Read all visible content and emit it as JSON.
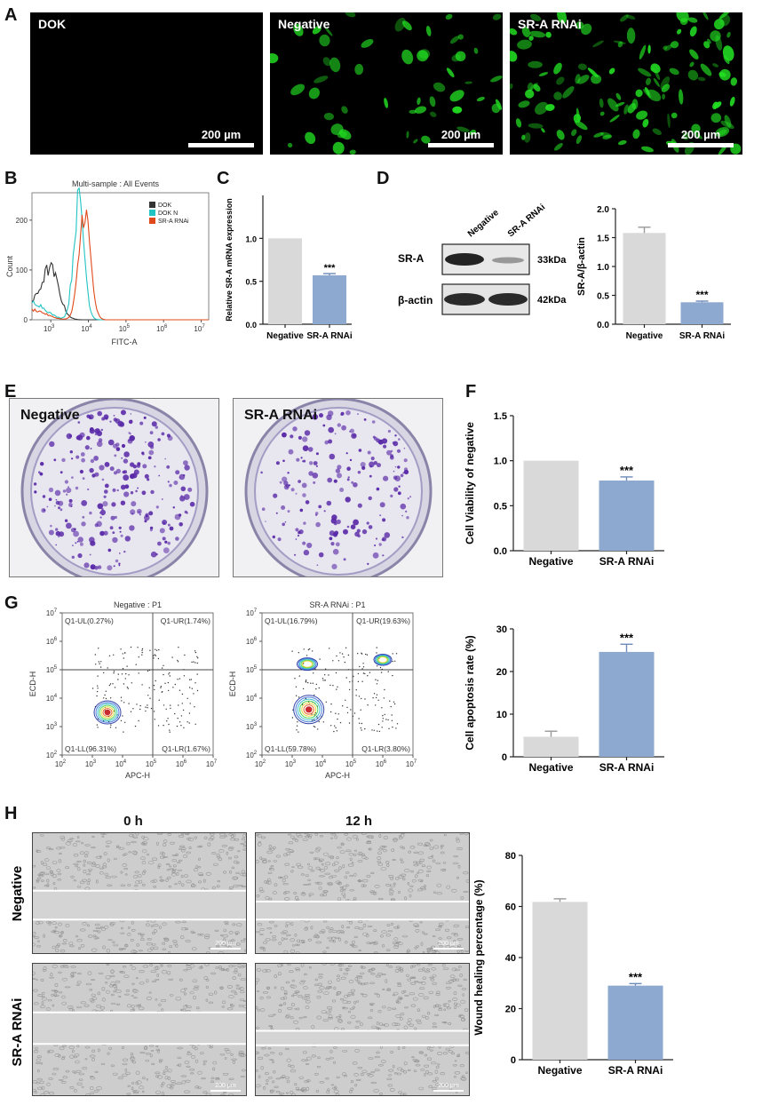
{
  "panels": {
    "A": {
      "label": "A",
      "images": [
        {
          "title": "DOK",
          "scalebar": "200 µm",
          "density": 0
        },
        {
          "title": "Negative",
          "scalebar": "200 µm",
          "density": 55
        },
        {
          "title": "SR-A RNAi",
          "scalebar": "200 µm",
          "density": 130
        }
      ],
      "fluorescence_color": "#22dd22"
    },
    "B": {
      "label": "B",
      "title": "Multi-sample : All Events",
      "xlabel": "FITC-A",
      "ylabel": "Count",
      "yticks": [
        "0",
        "100",
        "200"
      ],
      "xticks": [
        "3",
        "4",
        "5",
        "6",
        "7"
      ],
      "tick_base": "10",
      "legend": [
        {
          "name": "DOK",
          "color": "#333333"
        },
        {
          "name": "DOK N",
          "color": "#22c3c3"
        },
        {
          "name": "SR-A RNAi",
          "color": "#e0491c"
        }
      ]
    },
    "C": {
      "label": "C"
    },
    "D": {
      "label": "D",
      "blot": {
        "lanes": [
          "Negative",
          "SR-A RNAi"
        ],
        "rows": [
          {
            "name": "SR-A",
            "kda": "33kDa"
          },
          {
            "name": "β-actin",
            "kda": "42kDa"
          }
        ]
      }
    },
    "E": {
      "label": "E",
      "plates": [
        {
          "title": "Negative",
          "colonies": 260
        },
        {
          "title": "SR-A RNAi",
          "colonies": 190
        }
      ],
      "stain_color": "#5a2aa8"
    },
    "F": {
      "label": "F"
    },
    "G": {
      "label": "G",
      "plots": [
        {
          "title": "Negative : P1",
          "quadrants": {
            "ul": "Q1-UL(0.27%)",
            "ur": "Q1-UR(1.74%)",
            "ll": "Q1-LL(96.31%)",
            "lr": "Q1-LR(1.67%)"
          }
        },
        {
          "title": "SR-A RNAi : P1",
          "quadrants": {
            "ul": "Q1-UL(16.79%)",
            "ur": "Q1-UR(19.63%)",
            "ll": "Q1-LL(59.78%)",
            "lr": "Q1-LR(3.80%)"
          }
        }
      ],
      "xlabel": "APC-H",
      "ylabel": "ECD-H",
      "ticks": [
        "2",
        "3",
        "4",
        "5",
        "6",
        "7"
      ],
      "tick_base": "10"
    },
    "H": {
      "label": "H",
      "col_headers": [
        "0 h",
        "12 h"
      ],
      "row_headers": [
        "Negative",
        "SR-A RNAi"
      ],
      "scalebar": "200 µm"
    }
  },
  "chart_data": [
    {
      "id": "C",
      "type": "bar",
      "categories": [
        "Negative",
        "SR-A RNAi"
      ],
      "values": [
        1.0,
        0.57
      ],
      "errors": [
        0,
        0.02
      ],
      "ylabel": "Relative SR-A mRNA expression",
      "ylim": [
        0,
        1.5
      ],
      "yticks": [
        0,
        0.5,
        1.0
      ],
      "ytick_labels": [
        "0.0",
        "0.5",
        "1.0"
      ],
      "significance": [
        "",
        "***"
      ],
      "colors": [
        "#d9d9d9",
        "#8ea9cf"
      ]
    },
    {
      "id": "D",
      "type": "bar",
      "categories": [
        "Negative",
        "SR-A RNAi"
      ],
      "values": [
        1.58,
        0.38
      ],
      "errors": [
        0.1,
        0.02
      ],
      "ylabel": "SR-A/β-actin",
      "ylim": [
        0,
        2.0
      ],
      "yticks": [
        0,
        0.5,
        1.0,
        1.5,
        2.0
      ],
      "ytick_labels": [
        "0.0",
        "0.5",
        "1.0",
        "1.5",
        "2.0"
      ],
      "significance": [
        "",
        "***"
      ],
      "colors": [
        "#d9d9d9",
        "#8ea9cf"
      ]
    },
    {
      "id": "F",
      "type": "bar",
      "categories": [
        "Negative",
        "SR-A RNAi"
      ],
      "values": [
        1.0,
        0.78
      ],
      "errors": [
        0,
        0.04
      ],
      "ylabel": "Cell Viability of negative",
      "ylim": [
        0,
        1.5
      ],
      "yticks": [
        0,
        0.5,
        1.0,
        1.5
      ],
      "ytick_labels": [
        "0.0",
        "0.5",
        "1.0",
        "1.5"
      ],
      "significance": [
        "",
        "***"
      ],
      "colors": [
        "#d9d9d9",
        "#8ea9cf"
      ]
    },
    {
      "id": "G",
      "type": "bar",
      "categories": [
        "Negative",
        "SR-A RNAi"
      ],
      "values": [
        4.7,
        24.6
      ],
      "errors": [
        1.3,
        1.8
      ],
      "ylabel": "Cell apoptosis rate (%)",
      "ylim": [
        0,
        30
      ],
      "yticks": [
        0,
        10,
        20,
        30
      ],
      "ytick_labels": [
        "0",
        "10",
        "20",
        "30"
      ],
      "significance": [
        "",
        "***"
      ],
      "colors": [
        "#d9d9d9",
        "#8ea9cf"
      ]
    },
    {
      "id": "H",
      "type": "bar",
      "categories": [
        "Negative",
        "SR-A RNAi"
      ],
      "values": [
        61.8,
        29.0
      ],
      "errors": [
        1.2,
        0.8
      ],
      "ylabel": "Wound healing percentage (%)",
      "ylim": [
        0,
        80
      ],
      "yticks": [
        0,
        20,
        40,
        60,
        80
      ],
      "ytick_labels": [
        "0",
        "20",
        "40",
        "60",
        "80"
      ],
      "significance": [
        "",
        "***"
      ],
      "colors": [
        "#d9d9d9",
        "#8ea9cf"
      ]
    }
  ]
}
